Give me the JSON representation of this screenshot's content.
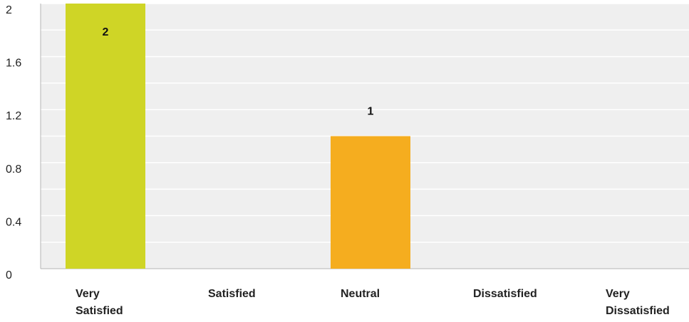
{
  "chart_data": {
    "type": "bar",
    "categories": [
      [
        "Very",
        "Satisfied"
      ],
      [
        "Satisfied"
      ],
      [
        "Neutral"
      ],
      [
        "Dissatisfied"
      ],
      [
        "Very",
        "Dissatisfied"
      ]
    ],
    "values": [
      2,
      0,
      1,
      0,
      0
    ],
    "data_labels": [
      "2",
      "",
      "1",
      "",
      ""
    ],
    "bar_colors": [
      "#cfd526",
      "#cfd526",
      "#f5ad1f",
      "#cfd526",
      "#cfd526"
    ],
    "yticks": [
      "0",
      "0.4",
      "0.8",
      "1.2",
      "1.6",
      "2"
    ],
    "ylim": [
      0,
      2
    ],
    "grid": true,
    "plot_background": "#efefef",
    "grid_color": "#ffffff",
    "title": "",
    "xlabel": "",
    "ylabel": ""
  }
}
